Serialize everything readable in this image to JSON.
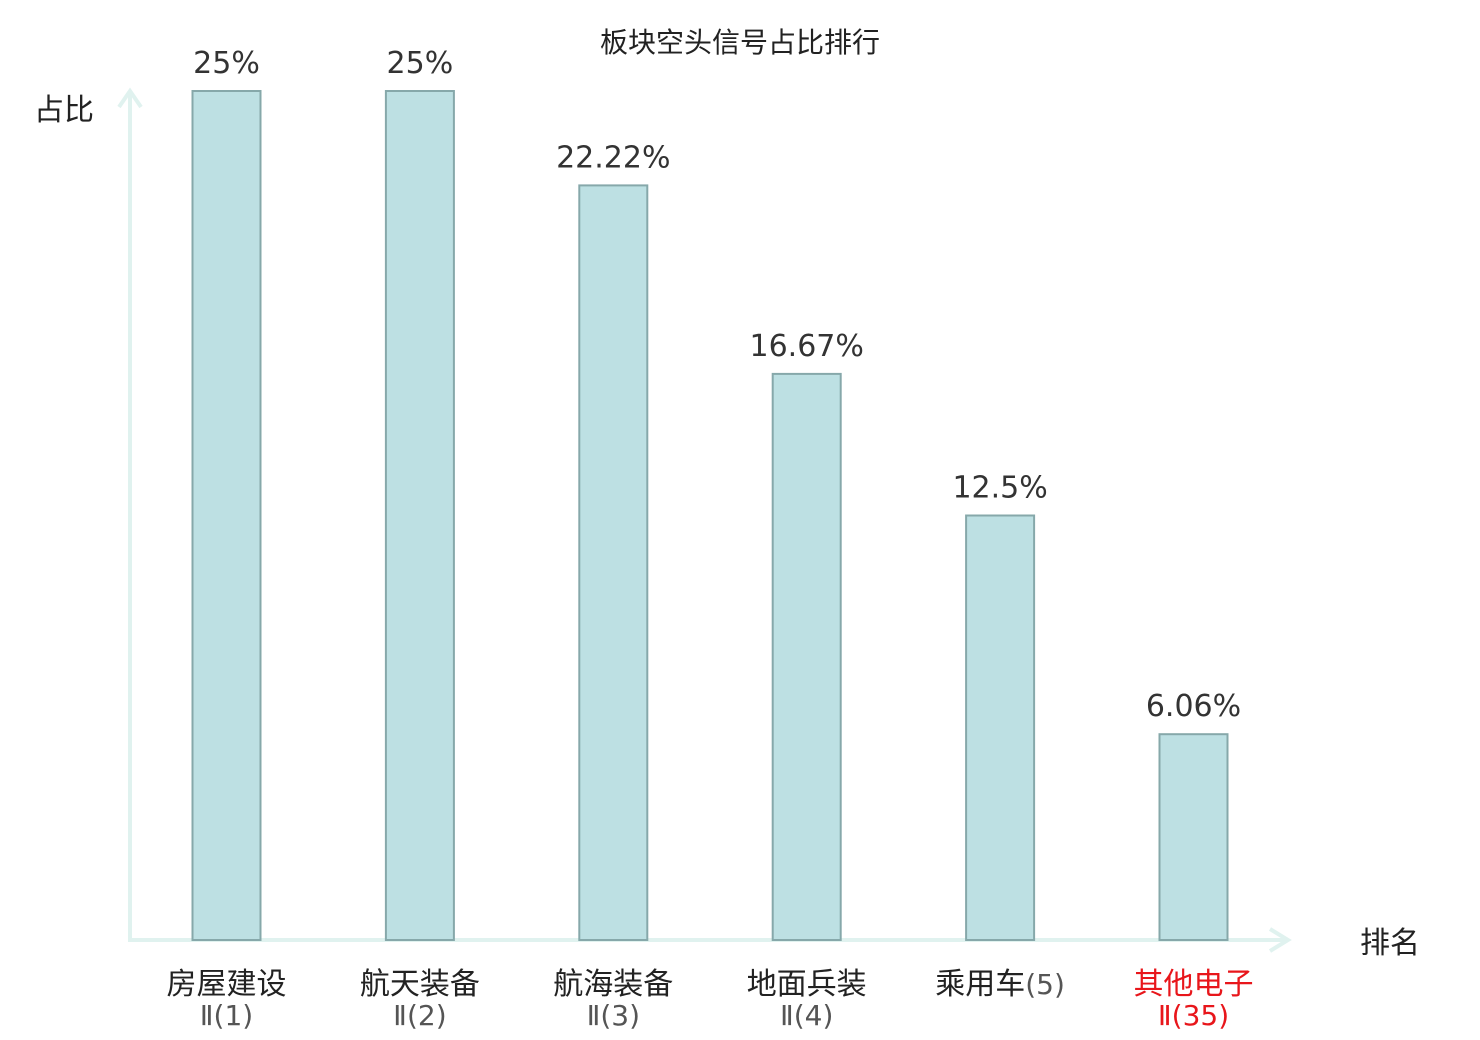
{
  "chart_data": {
    "type": "bar",
    "title": "板块空头信号占比排行",
    "ylabel": "占比",
    "xlabel": "排名",
    "ylim": [
      0,
      25
    ],
    "grid": false,
    "legend": "none",
    "categories": [
      {
        "name": "房屋建设",
        "rank": "Ⅱ(1)",
        "highlight": false
      },
      {
        "name": "航天装备",
        "rank": "Ⅱ(2)",
        "highlight": false
      },
      {
        "name": "航海装备",
        "rank": "Ⅱ(3)",
        "highlight": false
      },
      {
        "name": "地面兵装",
        "rank": "Ⅱ(4)",
        "highlight": false
      },
      {
        "name": "乘用车",
        "rank": "(5)",
        "highlight": false
      },
      {
        "name": "其他电子",
        "rank": "Ⅱ(35)",
        "highlight": true
      }
    ],
    "values": [
      25,
      25,
      22.22,
      16.67,
      12.5,
      6.06
    ],
    "value_labels": [
      "25%",
      "25%",
      "22.22%",
      "16.67%",
      "12.5%",
      "6.06%"
    ],
    "colors": {
      "bar_fill": "#bde0e3",
      "bar_stroke": "#86a8aa",
      "axis": "#e0f2ef",
      "text": "#222222",
      "value_text": "#333333",
      "rank_text": "#555555",
      "highlight": "#e8161b"
    }
  }
}
